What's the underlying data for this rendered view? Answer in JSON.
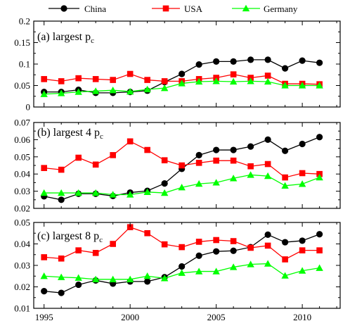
{
  "legend": [
    {
      "name": "China",
      "color": "#000000",
      "marker": "circle"
    },
    {
      "name": "USA",
      "color": "#ff0000",
      "marker": "square"
    },
    {
      "name": "Germany",
      "color": "#00ff00",
      "marker": "triangle"
    }
  ],
  "chart_data": [
    {
      "type": "line",
      "label_main": "(a) largest p",
      "label_sub": "c",
      "x": [
        1995,
        1996,
        1997,
        1998,
        1999,
        2000,
        2001,
        2002,
        2003,
        2004,
        2005,
        2006,
        2007,
        2008,
        2009,
        2010,
        2011
      ],
      "xlim": [
        1994.4,
        2012.2
      ],
      "ylim": [
        0,
        0.2
      ],
      "yticks": [
        "0",
        "0.05",
        "0.1",
        "0.15",
        "0.2"
      ],
      "yticks_values": [
        0,
        0.05,
        0.1,
        0.15,
        0.2
      ],
      "xticks": [
        "1995",
        "2000",
        "2005",
        "2010"
      ],
      "xticks_values": [
        1995,
        2000,
        2005,
        2010
      ],
      "series": [
        {
          "name": "China",
          "values": [
            0.035,
            0.035,
            0.04,
            0.033,
            0.033,
            0.035,
            0.038,
            0.058,
            0.077,
            0.099,
            0.106,
            0.106,
            0.11,
            0.11,
            0.09,
            0.108,
            0.103
          ]
        },
        {
          "name": "USA",
          "values": [
            0.065,
            0.06,
            0.067,
            0.065,
            0.063,
            0.077,
            0.063,
            0.06,
            0.06,
            0.065,
            0.068,
            0.076,
            0.068,
            0.073,
            0.054,
            0.054,
            0.053
          ]
        },
        {
          "name": "Germany",
          "values": [
            0.03,
            0.032,
            0.035,
            0.037,
            0.039,
            0.036,
            0.041,
            0.044,
            0.055,
            0.059,
            0.06,
            0.059,
            0.06,
            0.059,
            0.05,
            0.05,
            0.05
          ]
        }
      ]
    },
    {
      "type": "line",
      "label_main": "(b) largest 4 p",
      "label_sub": "c",
      "x": [
        1995,
        1996,
        1997,
        1998,
        1999,
        2000,
        2001,
        2002,
        2003,
        2004,
        2005,
        2006,
        2007,
        2008,
        2009,
        2010,
        2011
      ],
      "xlim": [
        1994.4,
        2012.2
      ],
      "ylim": [
        0.02,
        0.07
      ],
      "yticks": [
        "0.02",
        "0.03",
        "0.04",
        "0.05",
        "0.06",
        "0.07"
      ],
      "yticks_values": [
        0.02,
        0.03,
        0.04,
        0.05,
        0.06,
        0.07
      ],
      "xticks": [
        "1995",
        "2000",
        "2005",
        "2010"
      ],
      "xticks_values": [
        1995,
        2000,
        2005,
        2010
      ],
      "series": [
        {
          "name": "China",
          "values": [
            0.027,
            0.025,
            0.0285,
            0.0285,
            0.0272,
            0.0292,
            0.0302,
            0.0345,
            0.043,
            0.051,
            0.054,
            0.054,
            0.056,
            0.06,
            0.0535,
            0.0575,
            0.0615
          ]
        },
        {
          "name": "USA",
          "values": [
            0.0435,
            0.0425,
            0.0495,
            0.0455,
            0.051,
            0.059,
            0.054,
            0.048,
            0.045,
            0.0465,
            0.0478,
            0.0478,
            0.0445,
            0.0458,
            0.038,
            0.0405,
            0.04
          ]
        },
        {
          "name": "Germany",
          "values": [
            0.029,
            0.029,
            0.029,
            0.029,
            0.028,
            0.028,
            0.0295,
            0.029,
            0.0322,
            0.0343,
            0.035,
            0.0375,
            0.0395,
            0.0388,
            0.0332,
            0.0342,
            0.038
          ]
        }
      ]
    },
    {
      "type": "line",
      "label_main": "(c) largest 8 p",
      "label_sub": "c",
      "x": [
        1995,
        1996,
        1997,
        1998,
        1999,
        2000,
        2001,
        2002,
        2003,
        2004,
        2005,
        2006,
        2007,
        2008,
        2009,
        2010,
        2011
      ],
      "xlim": [
        1994.4,
        2012.2
      ],
      "ylim": [
        0.01,
        0.05
      ],
      "yticks": [
        "0.01",
        "0.02",
        "0.03",
        "0.04",
        "0.05"
      ],
      "yticks_values": [
        0.01,
        0.02,
        0.03,
        0.04,
        0.05
      ],
      "xticks": [
        "1995",
        "2000",
        "2005",
        "2010"
      ],
      "xticks_values": [
        1995,
        2000,
        2005,
        2010
      ],
      "series": [
        {
          "name": "China",
          "values": [
            0.018,
            0.0172,
            0.021,
            0.023,
            0.0215,
            0.0225,
            0.0225,
            0.0245,
            0.0295,
            0.0345,
            0.0365,
            0.0368,
            0.0385,
            0.0443,
            0.0408,
            0.0415,
            0.0445
          ]
        },
        {
          "name": "USA",
          "values": [
            0.0338,
            0.0332,
            0.037,
            0.0358,
            0.04,
            0.0478,
            0.045,
            0.0398,
            0.0385,
            0.041,
            0.0418,
            0.0413,
            0.0382,
            0.0392,
            0.0328,
            0.037,
            0.037
          ]
        },
        {
          "name": "Germany",
          "values": [
            0.025,
            0.0245,
            0.0242,
            0.0235,
            0.0235,
            0.0235,
            0.025,
            0.024,
            0.0265,
            0.0272,
            0.0272,
            0.0292,
            0.0305,
            0.0308,
            0.0252,
            0.0275,
            0.0288
          ]
        }
      ]
    }
  ]
}
